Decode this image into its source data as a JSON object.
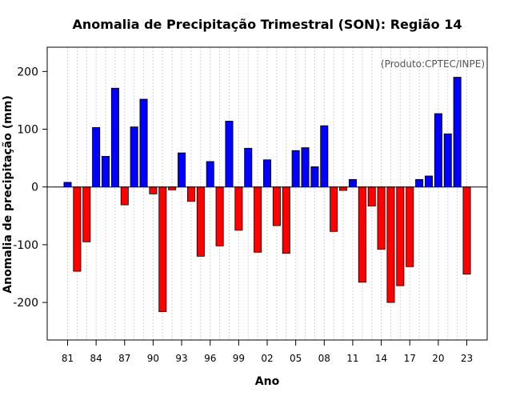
{
  "chart_data": {
    "type": "bar",
    "title": "Anomalia de Precipitação Trimestral (SON): Região 14",
    "xlabel": "Ano",
    "ylabel": "Anomalia de precipitação (mm)",
    "credit": "(Produto:CPTEC/INPE)",
    "ylim": [
      -265,
      242
    ],
    "yticks": [
      -200,
      -100,
      0,
      100,
      200
    ],
    "xtick_labels": [
      "81",
      "84",
      "87",
      "90",
      "93",
      "96",
      "99",
      "02",
      "05",
      "08",
      "11",
      "14",
      "17",
      "20",
      "23"
    ],
    "grid": "vertical dotted lines at each year",
    "positive_color": "#0000ff",
    "negative_color": "#ff0000",
    "categories": [
      "1981",
      "1982",
      "1983",
      "1984",
      "1985",
      "1986",
      "1987",
      "1988",
      "1989",
      "1990",
      "1991",
      "1992",
      "1993",
      "1994",
      "1995",
      "1996",
      "1997",
      "1998",
      "1999",
      "2000",
      "2001",
      "2002",
      "2003",
      "2004",
      "2005",
      "2006",
      "2007",
      "2008",
      "2009",
      "2010",
      "2011",
      "2012",
      "2013",
      "2014",
      "2015",
      "2016",
      "2017",
      "2018",
      "2019",
      "2020",
      "2021",
      "2022",
      "2023"
    ],
    "values": [
      8,
      -146,
      -95,
      103,
      53,
      171,
      -31,
      104,
      152,
      -12,
      -216,
      -5,
      59,
      -25,
      -120,
      44,
      -102,
      114,
      -75,
      67,
      -113,
      47,
      -67,
      -115,
      63,
      68,
      35,
      106,
      -77,
      -6,
      13,
      -165,
      -33,
      -108,
      -200,
      -171,
      -138,
      13,
      19,
      127,
      92,
      190,
      -151
    ]
  }
}
